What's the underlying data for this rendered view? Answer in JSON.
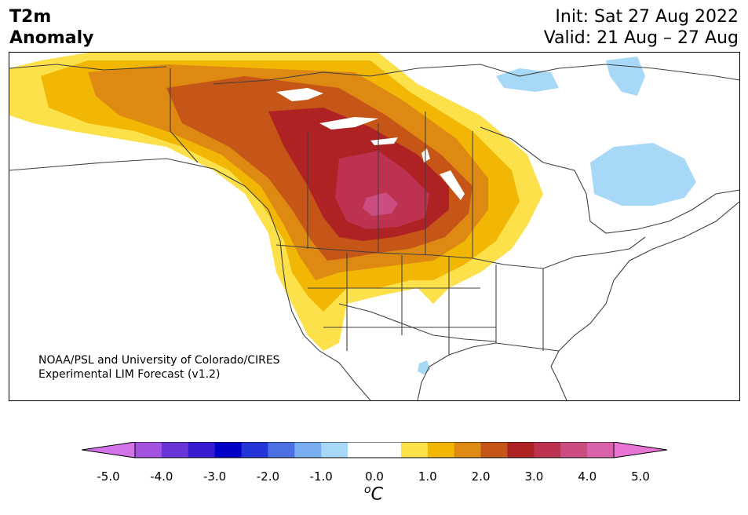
{
  "title": {
    "line1": "T2m",
    "line2": "Anomaly",
    "init": "Init: Sat 27 Aug 2022",
    "valid": "Valid: 21 Aug – 27 Aug"
  },
  "credit": {
    "line1": "NOAA/PSL and University of Colorado/CIRES",
    "line2": "Experimental LIM Forecast (v1.2)"
  },
  "colorbar": {
    "ticks": [
      "-5.0",
      "-4.0",
      "-3.0",
      "-2.0",
      "-1.0",
      "0.0",
      "1.0",
      "2.0",
      "3.0",
      "4.0",
      "5.0"
    ],
    "unit_sup": "o",
    "unit": "C",
    "colors": [
      "#d373e8",
      "#a452e0",
      "#6a35d8",
      "#3a1ad0",
      "#0000c8",
      "#2436d8",
      "#4c70e4",
      "#78aef0",
      "#a8d8f8",
      "#ffffff",
      "#ffffff",
      "#fde14a",
      "#f2b705",
      "#de8a12",
      "#c55618",
      "#af2224",
      "#bc3250",
      "#cc4e80",
      "#da62ac",
      "#e874d4"
    ]
  },
  "map": {
    "region": "North America",
    "variable": "2m temperature anomaly"
  }
}
